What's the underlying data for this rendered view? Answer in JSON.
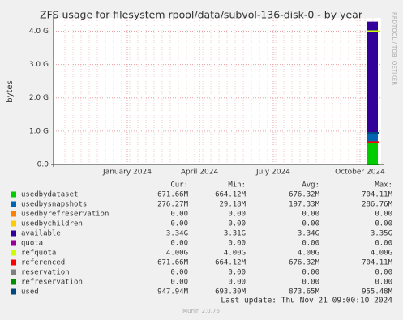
{
  "chart_data": {
    "type": "area",
    "title": "ZFS usage for filesystem rpool/data/subvol-136-disk-0 - by year",
    "y_label": "bytes",
    "side_note": "RRDTOOL / TOBI OETIKER",
    "footer": "Last update: Thu Nov 21 09:00:10 2024",
    "version": "Munin 2.0.76",
    "xticks": [
      "January 2024",
      "April 2024",
      "July 2024",
      "October 2024"
    ],
    "ylim": [
      0,
      4400000000
    ],
    "yticks": [
      {
        "value": 0,
        "label": "0.0"
      },
      {
        "value": 1000000000,
        "label": "1.0 G"
      },
      {
        "value": 2000000000,
        "label": "2.0 G"
      },
      {
        "value": 3000000000,
        "label": "3.0 G"
      },
      {
        "value": 4000000000,
        "label": "4.0 G"
      }
    ],
    "grid": true,
    "categories": [
      "Cur:",
      "Min:",
      "Avg:",
      "Max:"
    ],
    "series": [
      {
        "name": "usedbydataset",
        "color": "#00cc00",
        "stack": true,
        "values": [
          671660000,
          664120000,
          676320000,
          704110000
        ],
        "value_labels": [
          "671.66M",
          "664.12M",
          "676.32M",
          "704.11M"
        ]
      },
      {
        "name": "usedbysnapshots",
        "color": "#0066b3",
        "stack": true,
        "values": [
          276270000,
          29180000,
          197330000,
          286760000
        ],
        "value_labels": [
          "276.27M",
          "29.18M",
          "197.33M",
          "286.76M"
        ]
      },
      {
        "name": "usedbyrefreservation",
        "color": "#ff8000",
        "stack": true,
        "values": [
          0,
          0,
          0,
          0
        ],
        "value_labels": [
          "0.00",
          "0.00",
          "0.00",
          "0.00"
        ]
      },
      {
        "name": "usedbychildren",
        "color": "#ffcc00",
        "stack": true,
        "values": [
          0,
          0,
          0,
          0
        ],
        "value_labels": [
          "0.00",
          "0.00",
          "0.00",
          "0.00"
        ]
      },
      {
        "name": "available",
        "color": "#330099",
        "stack": true,
        "values": [
          3340000000,
          3310000000,
          3340000000,
          3350000000
        ],
        "value_labels": [
          "3.34G",
          "3.31G",
          "3.34G",
          "3.35G"
        ]
      },
      {
        "name": "quota",
        "color": "#990099",
        "stack": false,
        "values": [
          0,
          0,
          0,
          0
        ],
        "value_labels": [
          "0.00",
          "0.00",
          "0.00",
          "0.00"
        ]
      },
      {
        "name": "refquota",
        "color": "#ccff00",
        "stack": false,
        "values": [
          4000000000,
          4000000000,
          4000000000,
          4000000000
        ],
        "value_labels": [
          "4.00G",
          "4.00G",
          "4.00G",
          "4.00G"
        ]
      },
      {
        "name": "referenced",
        "color": "#ff0000",
        "stack": false,
        "values": [
          671660000,
          664120000,
          676320000,
          704110000
        ],
        "value_labels": [
          "671.66M",
          "664.12M",
          "676.32M",
          "704.11M"
        ]
      },
      {
        "name": "reservation",
        "color": "#808080",
        "stack": false,
        "values": [
          0,
          0,
          0,
          0
        ],
        "value_labels": [
          "0.00",
          "0.00",
          "0.00",
          "0.00"
        ]
      },
      {
        "name": "refreservation",
        "color": "#008f00",
        "stack": false,
        "values": [
          0,
          0,
          0,
          0
        ],
        "value_labels": [
          "0.00",
          "0.00",
          "0.00",
          "0.00"
        ]
      },
      {
        "name": "used",
        "color": "#00487d",
        "stack": false,
        "values": [
          947940000,
          693300000,
          873650000,
          955480000
        ],
        "value_labels": [
          "947.94M",
          "693.30M",
          "873.65M",
          "955.48M"
        ]
      }
    ]
  }
}
